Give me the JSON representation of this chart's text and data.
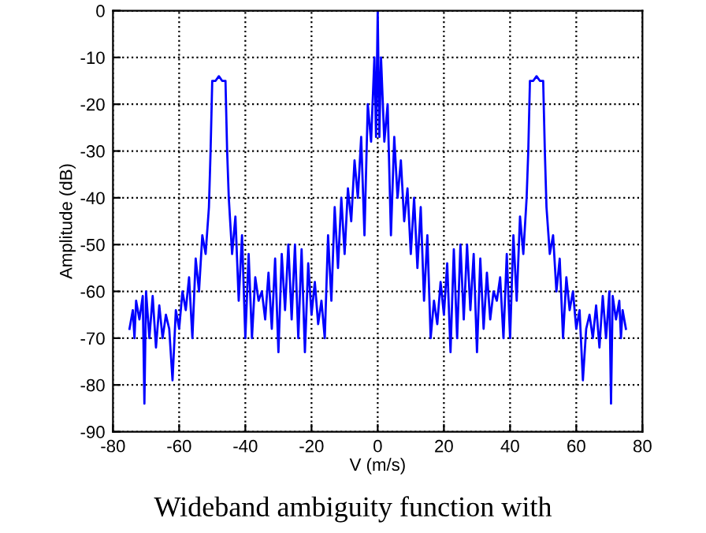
{
  "chart_data": {
    "type": "line",
    "xlabel": "V (m/s)",
    "ylabel": "Amplitude (dB)",
    "annotations": [
      "Wideband ambiguity function with"
    ],
    "xlim": [
      -80,
      80
    ],
    "ylim": [
      -90,
      0
    ],
    "xticks": [
      -80,
      -60,
      -40,
      -20,
      0,
      20,
      40,
      60,
      80
    ],
    "yticks": [
      -90,
      -80,
      -70,
      -60,
      -50,
      -40,
      -30,
      -20,
      -10,
      0
    ],
    "grid": true,
    "marker": "none",
    "line_style": "solid",
    "series": [
      {
        "color": "#0000ff",
        "x": [
          -75,
          -74,
          -73.5,
          -73,
          -72,
          -71,
          -70.5,
          -70,
          -69,
          -68,
          -67,
          -66,
          -65,
          -64,
          -63,
          -62,
          -61,
          -60,
          -59,
          -58,
          -57,
          -56,
          -55,
          -54,
          -53,
          -52,
          -51,
          -50.5,
          -50,
          -49,
          -48,
          -47,
          -46,
          -45.5,
          -45,
          -44,
          -43,
          -42,
          -41,
          -40,
          -39,
          -38,
          -37,
          -36,
          -35,
          -34,
          -33,
          -32,
          -31,
          -30,
          -29,
          -28,
          -27,
          -26,
          -25,
          -24,
          -23,
          -22,
          -21,
          -20,
          -19,
          -18,
          -17,
          -16,
          -15,
          -14,
          -13,
          -12,
          -11,
          -10,
          -9,
          -8,
          -7,
          -6,
          -5,
          -4,
          -3,
          -2,
          -1,
          -0.5,
          0,
          0.5,
          1,
          2,
          3,
          4,
          5,
          6,
          7,
          8,
          9,
          10,
          11,
          12,
          13,
          14,
          15,
          16,
          17,
          18,
          19,
          20,
          21,
          22,
          23,
          24,
          25,
          26,
          27,
          28,
          29,
          30,
          31,
          32,
          33,
          34,
          35,
          36,
          37,
          38,
          39,
          40,
          41,
          42,
          43,
          44,
          45,
          45.5,
          46,
          47,
          48,
          49,
          50,
          50.5,
          51,
          52,
          53,
          54,
          55,
          56,
          57,
          58,
          59,
          60,
          61,
          62,
          63,
          64,
          65,
          66,
          67,
          68,
          69,
          70,
          70.5,
          71,
          72,
          73,
          73.5,
          74,
          75
        ],
        "values": [
          -68,
          -64,
          -70,
          -62,
          -66,
          -61,
          -84,
          -60,
          -70,
          -61,
          -72,
          -63,
          -70,
          -65,
          -68,
          -79,
          -64,
          -68,
          -60,
          -64,
          -57,
          -70,
          -53,
          -60,
          -48,
          -52,
          -42,
          -30,
          -15,
          -15,
          -14,
          -15,
          -15,
          -30,
          -40,
          -52,
          -44,
          -62,
          -48,
          -70,
          -52,
          -70,
          -57,
          -62,
          -60,
          -66,
          -56,
          -68,
          -53,
          -73,
          -52,
          -64,
          -50,
          -66,
          -50,
          -70,
          -51,
          -73,
          -54,
          -65,
          -58,
          -67,
          -62,
          -70,
          -48,
          -62,
          -42,
          -55,
          -40,
          -52,
          -38,
          -45,
          -32,
          -40,
          -27,
          -48,
          -20,
          -28,
          -10,
          -27,
          0,
          -27,
          -10,
          -28,
          -20,
          -48,
          -27,
          -40,
          -32,
          -45,
          -38,
          -52,
          -40,
          -55,
          -42,
          -62,
          -48,
          -70,
          -62,
          -67,
          -58,
          -65,
          -54,
          -73,
          -51,
          -70,
          -50,
          -66,
          -50,
          -64,
          -52,
          -73,
          -53,
          -68,
          -56,
          -66,
          -60,
          -62,
          -57,
          -70,
          -52,
          -70,
          -48,
          -62,
          -44,
          -52,
          -40,
          -30,
          -15,
          -15,
          -14,
          -15,
          -15,
          -30,
          -42,
          -52,
          -48,
          -60,
          -53,
          -70,
          -57,
          -64,
          -60,
          -68,
          -64,
          -79,
          -68,
          -65,
          -70,
          -63,
          -72,
          -61,
          -70,
          -60,
          -84,
          -61,
          -66,
          -62,
          -70,
          -64,
          -68
        ]
      }
    ]
  }
}
